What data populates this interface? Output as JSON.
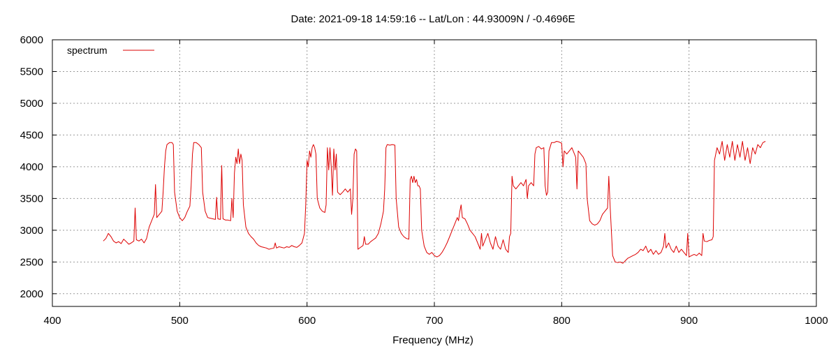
{
  "chart_data": {
    "type": "line",
    "title": "Date: 2021-09-18 14:59:16  --  Lat/Lon : 44.93009N / -0.4696E",
    "xlabel": "Frequency (MHz)",
    "ylabel": "",
    "xlim": [
      400,
      1000
    ],
    "ylim": [
      1800,
      6000
    ],
    "x_ticks": [
      400,
      500,
      600,
      700,
      800,
      900,
      1000
    ],
    "y_ticks": [
      2000,
      2500,
      3000,
      3500,
      4000,
      4500,
      5000,
      5500,
      6000
    ],
    "grid": true,
    "legend_position": "top-left",
    "series": [
      {
        "name": "spectrum",
        "color": "#dd0000",
        "points": [
          [
            440,
            2830
          ],
          [
            442,
            2870
          ],
          [
            444,
            2950
          ],
          [
            446,
            2900
          ],
          [
            448,
            2830
          ],
          [
            450,
            2800
          ],
          [
            452,
            2820
          ],
          [
            454,
            2790
          ],
          [
            456,
            2860
          ],
          [
            458,
            2820
          ],
          [
            460,
            2780
          ],
          [
            462,
            2800
          ],
          [
            464,
            2830
          ],
          [
            465,
            3350
          ],
          [
            466,
            2850
          ],
          [
            468,
            2830
          ],
          [
            470,
            2860
          ],
          [
            472,
            2800
          ],
          [
            474,
            2870
          ],
          [
            476,
            3050
          ],
          [
            478,
            3150
          ],
          [
            480,
            3250
          ],
          [
            481,
            3720
          ],
          [
            482,
            3200
          ],
          [
            484,
            3250
          ],
          [
            486,
            3300
          ],
          [
            487,
            3600
          ],
          [
            488,
            4000
          ],
          [
            489,
            4250
          ],
          [
            490,
            4350
          ],
          [
            492,
            4380
          ],
          [
            494,
            4380
          ],
          [
            495,
            4350
          ],
          [
            496,
            3600
          ],
          [
            498,
            3300
          ],
          [
            500,
            3200
          ],
          [
            502,
            3150
          ],
          [
            504,
            3200
          ],
          [
            506,
            3300
          ],
          [
            508,
            3380
          ],
          [
            509,
            3700
          ],
          [
            510,
            4200
          ],
          [
            511,
            4380
          ],
          [
            513,
            4380
          ],
          [
            515,
            4350
          ],
          [
            517,
            4300
          ],
          [
            518,
            3600
          ],
          [
            520,
            3300
          ],
          [
            522,
            3200
          ],
          [
            524,
            3190
          ],
          [
            526,
            3180
          ],
          [
            528,
            3170
          ],
          [
            529,
            3520
          ],
          [
            530,
            3180
          ],
          [
            532,
            3170
          ],
          [
            533,
            4020
          ],
          [
            534,
            3180
          ],
          [
            536,
            3160
          ],
          [
            538,
            3160
          ],
          [
            540,
            3150
          ],
          [
            541,
            3500
          ],
          [
            542,
            3200
          ],
          [
            543,
            3900
          ],
          [
            544,
            4150
          ],
          [
            545,
            4050
          ],
          [
            546,
            4280
          ],
          [
            547,
            4050
          ],
          [
            548,
            4200
          ],
          [
            549,
            4100
          ],
          [
            550,
            3400
          ],
          [
            552,
            3050
          ],
          [
            554,
            2950
          ],
          [
            556,
            2900
          ],
          [
            558,
            2860
          ],
          [
            560,
            2800
          ],
          [
            562,
            2760
          ],
          [
            564,
            2740
          ],
          [
            566,
            2730
          ],
          [
            568,
            2720
          ],
          [
            570,
            2700
          ],
          [
            572,
            2710
          ],
          [
            574,
            2720
          ],
          [
            575,
            2800
          ],
          [
            576,
            2720
          ],
          [
            578,
            2740
          ],
          [
            580,
            2730
          ],
          [
            582,
            2720
          ],
          [
            584,
            2740
          ],
          [
            586,
            2730
          ],
          [
            588,
            2760
          ],
          [
            590,
            2740
          ],
          [
            592,
            2730
          ],
          [
            594,
            2760
          ],
          [
            596,
            2800
          ],
          [
            598,
            2950
          ],
          [
            599,
            3400
          ],
          [
            600,
            4100
          ],
          [
            601,
            4000
          ],
          [
            602,
            4250
          ],
          [
            603,
            4150
          ],
          [
            604,
            4300
          ],
          [
            605,
            4350
          ],
          [
            606,
            4300
          ],
          [
            607,
            4200
          ],
          [
            608,
            3500
          ],
          [
            610,
            3350
          ],
          [
            612,
            3300
          ],
          [
            614,
            3280
          ],
          [
            615,
            3400
          ],
          [
            616,
            4300
          ],
          [
            617,
            3950
          ],
          [
            618,
            4300
          ],
          [
            619,
            4000
          ],
          [
            620,
            3550
          ],
          [
            621,
            4280
          ],
          [
            622,
            3950
          ],
          [
            623,
            4200
          ],
          [
            624,
            3600
          ],
          [
            626,
            3560
          ],
          [
            628,
            3600
          ],
          [
            630,
            3650
          ],
          [
            632,
            3600
          ],
          [
            634,
            3650
          ],
          [
            635,
            3250
          ],
          [
            636,
            3500
          ],
          [
            637,
            4200
          ],
          [
            638,
            4280
          ],
          [
            639,
            4250
          ],
          [
            640,
            2700
          ],
          [
            642,
            2730
          ],
          [
            644,
            2760
          ],
          [
            645,
            2900
          ],
          [
            646,
            2780
          ],
          [
            648,
            2780
          ],
          [
            650,
            2820
          ],
          [
            652,
            2850
          ],
          [
            654,
            2880
          ],
          [
            656,
            2950
          ],
          [
            658,
            3100
          ],
          [
            660,
            3300
          ],
          [
            661,
            3650
          ],
          [
            662,
            4300
          ],
          [
            663,
            4350
          ],
          [
            665,
            4340
          ],
          [
            667,
            4350
          ],
          [
            669,
            4340
          ],
          [
            670,
            3500
          ],
          [
            672,
            3050
          ],
          [
            674,
            2950
          ],
          [
            676,
            2900
          ],
          [
            678,
            2870
          ],
          [
            680,
            2860
          ],
          [
            681,
            3800
          ],
          [
            682,
            3850
          ],
          [
            683,
            3750
          ],
          [
            684,
            3850
          ],
          [
            685,
            3750
          ],
          [
            686,
            3800
          ],
          [
            687,
            3700
          ],
          [
            688,
            3700
          ],
          [
            689,
            3650
          ],
          [
            690,
            3000
          ],
          [
            692,
            2750
          ],
          [
            694,
            2650
          ],
          [
            696,
            2620
          ],
          [
            698,
            2650
          ],
          [
            700,
            2600
          ],
          [
            702,
            2580
          ],
          [
            704,
            2600
          ],
          [
            706,
            2650
          ],
          [
            708,
            2720
          ],
          [
            710,
            2800
          ],
          [
            712,
            2900
          ],
          [
            714,
            3000
          ],
          [
            716,
            3100
          ],
          [
            718,
            3200
          ],
          [
            719,
            3150
          ],
          [
            720,
            3300
          ],
          [
            721,
            3400
          ],
          [
            722,
            3200
          ],
          [
            724,
            3180
          ],
          [
            726,
            3100
          ],
          [
            728,
            3000
          ],
          [
            730,
            2950
          ],
          [
            732,
            2900
          ],
          [
            734,
            2800
          ],
          [
            736,
            2700
          ],
          [
            737,
            2950
          ],
          [
            738,
            2750
          ],
          [
            740,
            2850
          ],
          [
            742,
            2950
          ],
          [
            744,
            2800
          ],
          [
            746,
            2700
          ],
          [
            748,
            2900
          ],
          [
            750,
            2750
          ],
          [
            752,
            2700
          ],
          [
            754,
            2850
          ],
          [
            756,
            2700
          ],
          [
            758,
            2650
          ],
          [
            759,
            2900
          ],
          [
            760,
            2950
          ],
          [
            761,
            3850
          ],
          [
            762,
            3700
          ],
          [
            764,
            3650
          ],
          [
            766,
            3700
          ],
          [
            768,
            3750
          ],
          [
            770,
            3700
          ],
          [
            772,
            3800
          ],
          [
            773,
            3500
          ],
          [
            774,
            3700
          ],
          [
            776,
            3750
          ],
          [
            778,
            3700
          ],
          [
            779,
            4200
          ],
          [
            780,
            4300
          ],
          [
            782,
            4320
          ],
          [
            784,
            4280
          ],
          [
            786,
            4300
          ],
          [
            787,
            3700
          ],
          [
            788,
            3550
          ],
          [
            789,
            3600
          ],
          [
            790,
            4250
          ],
          [
            792,
            4380
          ],
          [
            794,
            4380
          ],
          [
            796,
            4400
          ],
          [
            798,
            4390
          ],
          [
            800,
            4370
          ],
          [
            801,
            4000
          ],
          [
            802,
            4250
          ],
          [
            804,
            4200
          ],
          [
            806,
            4250
          ],
          [
            808,
            4300
          ],
          [
            810,
            4200
          ],
          [
            811,
            4150
          ],
          [
            812,
            3650
          ],
          [
            813,
            4250
          ],
          [
            815,
            4200
          ],
          [
            817,
            4150
          ],
          [
            819,
            4050
          ],
          [
            820,
            3500
          ],
          [
            822,
            3150
          ],
          [
            824,
            3100
          ],
          [
            826,
            3080
          ],
          [
            828,
            3100
          ],
          [
            830,
            3150
          ],
          [
            832,
            3250
          ],
          [
            834,
            3300
          ],
          [
            836,
            3350
          ],
          [
            837,
            3850
          ],
          [
            838,
            3400
          ],
          [
            840,
            2600
          ],
          [
            842,
            2500
          ],
          [
            844,
            2490
          ],
          [
            846,
            2500
          ],
          [
            848,
            2480
          ],
          [
            850,
            2520
          ],
          [
            852,
            2560
          ],
          [
            854,
            2580
          ],
          [
            856,
            2600
          ],
          [
            858,
            2620
          ],
          [
            860,
            2650
          ],
          [
            862,
            2700
          ],
          [
            864,
            2680
          ],
          [
            866,
            2750
          ],
          [
            868,
            2650
          ],
          [
            870,
            2700
          ],
          [
            872,
            2620
          ],
          [
            874,
            2680
          ],
          [
            876,
            2620
          ],
          [
            878,
            2650
          ],
          [
            880,
            2750
          ],
          [
            881,
            2950
          ],
          [
            882,
            2720
          ],
          [
            884,
            2800
          ],
          [
            886,
            2700
          ],
          [
            888,
            2650
          ],
          [
            890,
            2750
          ],
          [
            892,
            2650
          ],
          [
            894,
            2700
          ],
          [
            896,
            2650
          ],
          [
            898,
            2600
          ],
          [
            899,
            2950
          ],
          [
            900,
            2580
          ],
          [
            902,
            2600
          ],
          [
            904,
            2620
          ],
          [
            906,
            2600
          ],
          [
            908,
            2640
          ],
          [
            910,
            2600
          ],
          [
            911,
            2950
          ],
          [
            912,
            2830
          ],
          [
            914,
            2820
          ],
          [
            916,
            2840
          ],
          [
            918,
            2850
          ],
          [
            919,
            2900
          ],
          [
            920,
            4100
          ],
          [
            922,
            4300
          ],
          [
            924,
            4200
          ],
          [
            926,
            4400
          ],
          [
            928,
            4100
          ],
          [
            930,
            4350
          ],
          [
            932,
            4150
          ],
          [
            934,
            4400
          ],
          [
            936,
            4100
          ],
          [
            938,
            4350
          ],
          [
            940,
            4150
          ],
          [
            942,
            4400
          ],
          [
            944,
            4100
          ],
          [
            946,
            4300
          ],
          [
            948,
            4050
          ],
          [
            950,
            4300
          ],
          [
            952,
            4200
          ],
          [
            954,
            4350
          ],
          [
            956,
            4300
          ],
          [
            958,
            4380
          ],
          [
            960,
            4400
          ]
        ]
      }
    ]
  }
}
